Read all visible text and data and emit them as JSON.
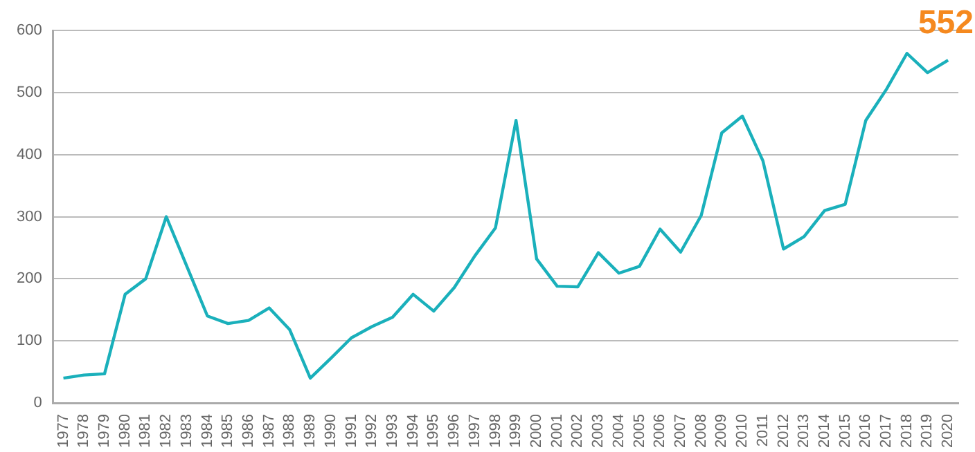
{
  "chart_data": {
    "type": "line",
    "categories": [
      "1977",
      "1978",
      "1979",
      "1980",
      "1981",
      "1982",
      "1983",
      "1984",
      "1985",
      "1986",
      "1987",
      "1988",
      "1989",
      "1990",
      "1991",
      "1992",
      "1993",
      "1994",
      "1995",
      "1996",
      "1997",
      "1998",
      "1999",
      "2000",
      "2001",
      "2002",
      "2003",
      "2004",
      "2005",
      "2006",
      "2007",
      "2008",
      "2009",
      "2010",
      "2011",
      "2012",
      "2013",
      "2014",
      "2015",
      "2016",
      "2017",
      "2018",
      "2019",
      "2020"
    ],
    "series": [
      {
        "color": "#1ab0bb",
        "values": [
          40,
          45,
          47,
          175,
          200,
          300,
          220,
          140,
          128,
          133,
          153,
          118,
          40,
          72,
          105,
          123,
          138,
          175,
          148,
          186,
          237,
          282,
          455,
          232,
          188,
          187,
          242,
          209,
          220,
          280,
          243,
          302,
          435,
          462,
          390,
          248,
          268,
          310,
          320,
          455,
          505,
          563,
          532,
          552
        ]
      }
    ],
    "ylim": [
      0,
      600
    ],
    "yticks": [
      0,
      100,
      200,
      300,
      400,
      500,
      600
    ],
    "grid": "y",
    "legend": false,
    "marker": "none",
    "line_style": "solid",
    "annotations": [
      {
        "text": "552",
        "x": "2020",
        "y": 552
      }
    ]
  }
}
